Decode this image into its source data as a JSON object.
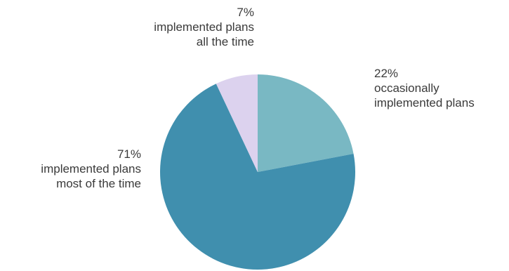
{
  "chart_data": {
    "type": "pie",
    "slices": [
      {
        "value": 22,
        "percent_label": "22%",
        "label_lines": [
          "occasionally",
          "implemented plans"
        ],
        "color": "#79b8c3"
      },
      {
        "value": 71,
        "percent_label": "71%",
        "label_lines": [
          "implemented plans",
          "most of the time"
        ],
        "color": "#408fae"
      },
      {
        "value": 7,
        "percent_label": "7%",
        "label_lines": [
          "implemented plans",
          "all the time"
        ],
        "color": "#dcd2ee"
      }
    ],
    "start_angle": "12 o'clock",
    "direction": "clockwise",
    "legend": "none",
    "label_placement": "outside"
  }
}
